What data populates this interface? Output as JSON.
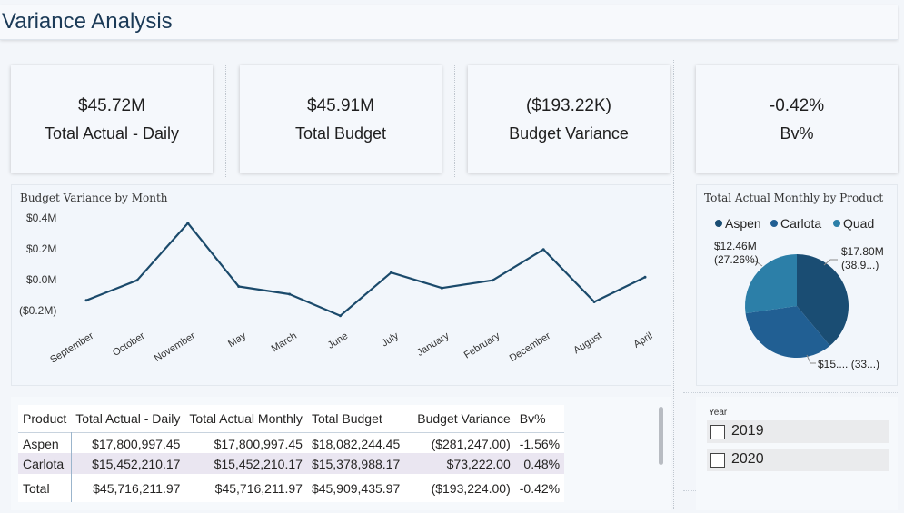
{
  "page": {
    "title": "Variance Analysis"
  },
  "kpis": [
    {
      "value": "$45.72M",
      "label": "Total Actual - Daily"
    },
    {
      "value": "$45.91M",
      "label": "Total Budget"
    },
    {
      "value": "($193.22K)",
      "label": "Budget Variance"
    },
    {
      "value": "-0.42%",
      "label": "Bv%"
    }
  ],
  "line_chart": {
    "title": "Budget Variance by Month",
    "line_color": "#1b4a6b",
    "ytick_labels": [
      "$0.4M",
      "$0.2M",
      "$0.0M",
      "($0.2M)"
    ]
  },
  "pie_chart": {
    "title": "Total Actual Monthly by Product",
    "legend": [
      {
        "name": "Aspen",
        "color": "#1a4d73"
      },
      {
        "name": "Carlota",
        "color": "#215f93"
      },
      {
        "name": "Quad",
        "color": "#2c7fa8"
      }
    ],
    "labels": {
      "quad_value": "$12.46M",
      "quad_pct": "(27.26%)",
      "aspen_value": "$17.80M",
      "aspen_pct": "(38.9...)",
      "carlota_text": "$15.... (33...)"
    }
  },
  "chart_data": [
    {
      "type": "line",
      "title": "Budget Variance by Month",
      "categories": [
        "September",
        "October",
        "November",
        "May",
        "March",
        "June",
        "July",
        "January",
        "February",
        "December",
        "August",
        "April"
      ],
      "series": [
        {
          "values": [
            -0.14,
            -0.01,
            0.36,
            -0.05,
            -0.1,
            -0.24,
            0.04,
            -0.06,
            -0.01,
            0.19,
            -0.15,
            0.01
          ]
        }
      ],
      "ylim": [
        -0.2,
        0.4
      ],
      "ytick_values": [
        0.4,
        0.2,
        0.0,
        -0.2
      ],
      "unit": "$M",
      "xlabel": "",
      "ylabel": ""
    },
    {
      "type": "pie",
      "title": "Total Actual Monthly by Product",
      "categories": [
        "Aspen",
        "Carlota",
        "Quad"
      ],
      "values": [
        17.8,
        15.45,
        12.46
      ],
      "percents": [
        38.93,
        33.8,
        27.26
      ],
      "colors": [
        "#1a4d73",
        "#215f93",
        "#2c7fa8"
      ],
      "legend_position": "top"
    }
  ],
  "table": {
    "headers": [
      "Product",
      "Total Actual - Daily",
      "Total Actual Monthly",
      "Total Budget",
      "Budget Variance",
      "Bv%"
    ],
    "rows": [
      [
        "Aspen",
        "$17,800,997.45",
        "$17,800,997.45",
        "$18,082,244.45",
        "($281,247.00)",
        "-1.56%"
      ],
      [
        "Carlota",
        "$15,452,210.17",
        "$15,452,210.17",
        "$15,378,988.17",
        "$73,222.00",
        "0.48%"
      ]
    ],
    "total": [
      "Total",
      "$45,716,211.97",
      "$45,716,211.97",
      "$45,909,435.97",
      "($193,224.00)",
      "-0.42%"
    ]
  },
  "slicer": {
    "title": "Year",
    "options": [
      "2019",
      "2020"
    ]
  }
}
